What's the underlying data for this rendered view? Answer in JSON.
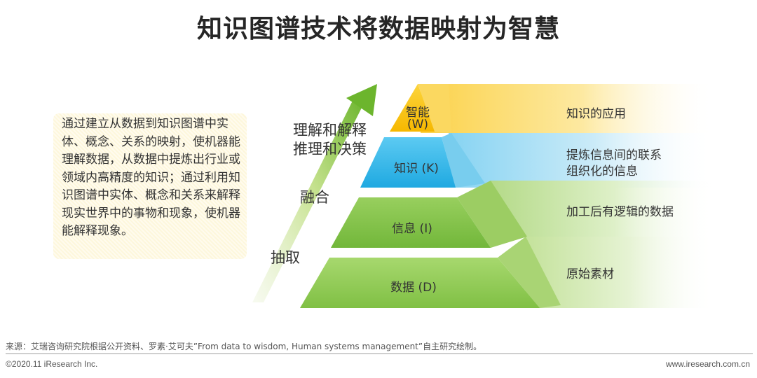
{
  "title": "知识图谱技术将数据映射为智慧",
  "description": "通过建立从数据到知识图谱中实体、概念、关系的映射，使机器能理解数据，从数据中提炼出行业或领域内高精度的知识；通过利用知识图谱中实体、概念和关系来解释现实世界中的事物和现象，使机器能解释现象。",
  "process_labels": {
    "understand_line1": "理解和解释",
    "understand_line2": "推理和决策",
    "fuse": "融合",
    "extract": "抽取"
  },
  "pyramid": {
    "wisdom": {
      "line1": "智能",
      "line2": "(W)",
      "note": "知识的应用",
      "color": "#f9c40f"
    },
    "knowledge": {
      "label": "知识 (K)",
      "note_line1": "提炼信息间的联系",
      "note_line2": "组织化的信息",
      "color": "#35b6e8"
    },
    "information": {
      "label": "信息 (I)",
      "note": "加工后有逻辑的数据",
      "color": "#7ac142"
    },
    "data": {
      "label": "数据 (D)",
      "note": "原始素材",
      "color": "#8fc951"
    }
  },
  "footer": {
    "source": "来源：艾瑞咨询研究院根据公开资料、罗素·艾可夫”From data to wisdom, Human systems management”自主研究绘制。",
    "copyright": "©2020.11 iResearch Inc.",
    "website": "www.iresearch.com.cn"
  }
}
